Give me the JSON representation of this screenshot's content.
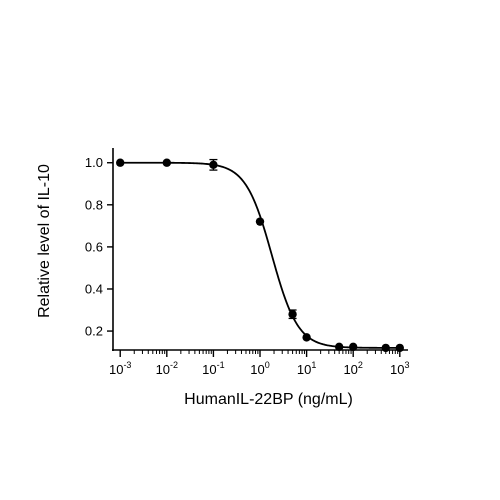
{
  "chart_data": {
    "type": "scatter",
    "xlabel": "HumanIL-22BP (ng/mL)",
    "ylabel": "Relative level of IL-10",
    "x_scale": "log",
    "xlim": [
      0.0007,
      1500
    ],
    "ylim": [
      0.11,
      1.07
    ],
    "x_ticks": [
      {
        "value": 0.001,
        "base": "10",
        "exp": "-3"
      },
      {
        "value": 0.01,
        "base": "10",
        "exp": "-2"
      },
      {
        "value": 0.1,
        "base": "10",
        "exp": "-1"
      },
      {
        "value": 1,
        "base": "10",
        "exp": "0"
      },
      {
        "value": 10,
        "base": "10",
        "exp": "1"
      },
      {
        "value": 100,
        "base": "10",
        "exp": "2"
      },
      {
        "value": 1000,
        "base": "10",
        "exp": "3"
      }
    ],
    "y_ticks": [
      {
        "value": 0.2,
        "label": "0.2"
      },
      {
        "value": 0.4,
        "label": "0.4"
      },
      {
        "value": 0.6,
        "label": "0.6"
      },
      {
        "value": 0.8,
        "label": "0.8"
      },
      {
        "value": 1.0,
        "label": "1.0"
      }
    ],
    "grid": false,
    "points": [
      {
        "x": 0.001,
        "y": 1.0,
        "err": 0
      },
      {
        "x": 0.01,
        "y": 1.0,
        "err": 0
      },
      {
        "x": 0.1,
        "y": 0.99,
        "err": 0.025
      },
      {
        "x": 1.0,
        "y": 0.72,
        "err": 0
      },
      {
        "x": 5.0,
        "y": 0.28,
        "err": 0.02
      },
      {
        "x": 10,
        "y": 0.17,
        "err": 0
      },
      {
        "x": 50,
        "y": 0.125,
        "err": 0
      },
      {
        "x": 100,
        "y": 0.125,
        "err": 0
      },
      {
        "x": 500,
        "y": 0.12,
        "err": 0
      },
      {
        "x": 1000,
        "y": 0.12,
        "err": 0
      }
    ],
    "fit_curve": {
      "top": 1.0,
      "bottom": 0.12,
      "ec50": 1.8,
      "hill": 1.55
    },
    "colors": {
      "marker": "#000000",
      "line": "#000000",
      "axis": "#000000"
    }
  }
}
